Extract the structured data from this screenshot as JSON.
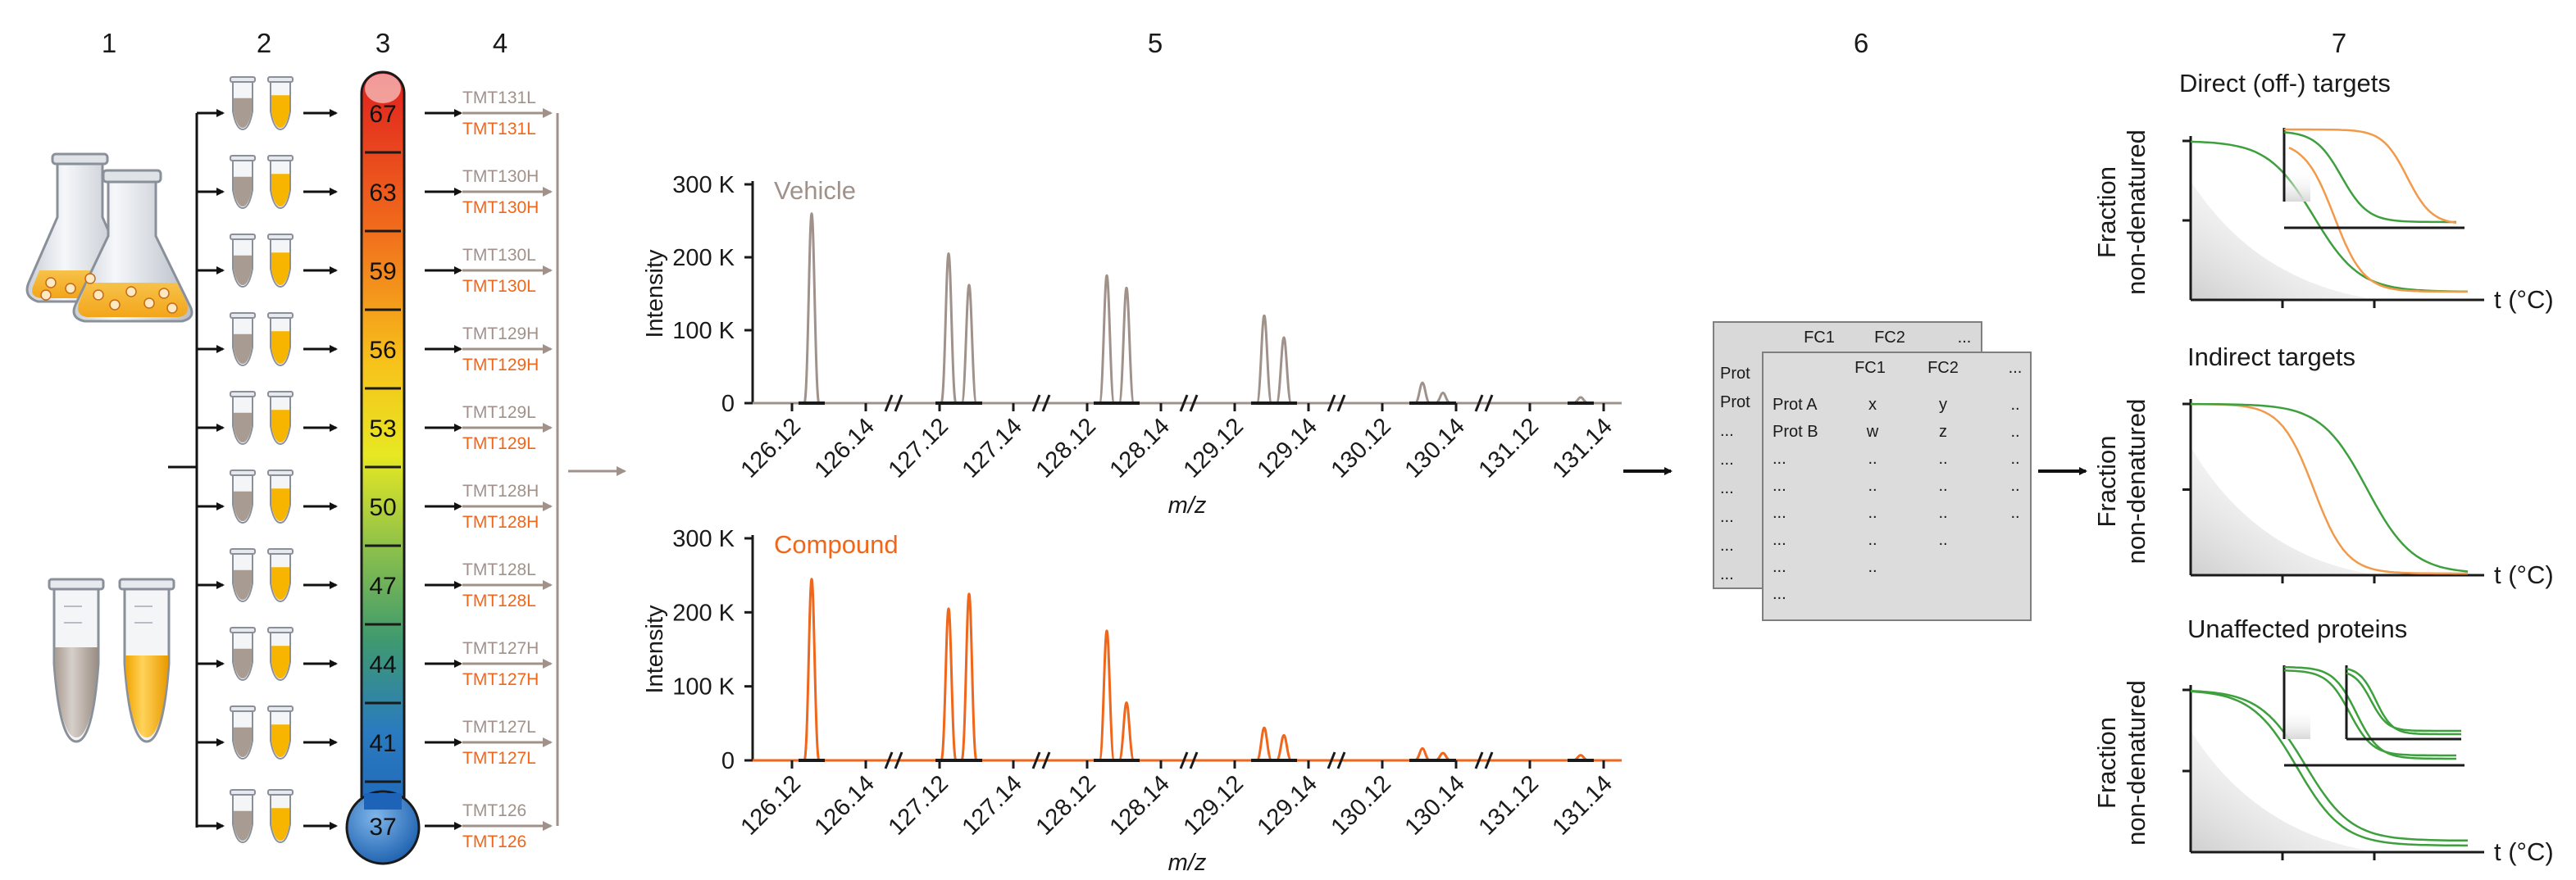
{
  "steps": [
    "1",
    "2",
    "3",
    "4",
    "5",
    "6",
    "7"
  ],
  "temperatures": [
    "67",
    "63",
    "59",
    "56",
    "53",
    "50",
    "47",
    "44",
    "41",
    "37"
  ],
  "tmt_labels": [
    "TMT131L",
    "TMT130H",
    "TMT130L",
    "TMT129H",
    "TMT129L",
    "TMT128H",
    "TMT128L",
    "TMT127H",
    "TMT127L",
    "TMT126"
  ],
  "colors": {
    "vehicle": "#a0928a",
    "compound": "#f0661a",
    "green": "#3da03d",
    "orange_curve": "#f29a4a",
    "tube_fill": "#f7b500",
    "arrow": "#111111",
    "axis": "#1a1a1a"
  },
  "spectra": [
    {
      "name": "Vehicle",
      "ylabel": "Intensity",
      "xlabel": "m/z",
      "yticks": [
        "300 K",
        "200 K",
        "100 K",
        "0"
      ],
      "xticks": [
        "126.12",
        "126.14",
        "127.12",
        "127.14",
        "128.12",
        "128.14",
        "129.12",
        "129.14",
        "130.12",
        "130.14",
        "131.12",
        "131.14"
      ],
      "peaks": [
        {
          "x": "126.13",
          "y": 260000
        },
        {
          "x": "127.125",
          "y": 205000
        },
        {
          "x": "127.13",
          "y": 162000
        },
        {
          "x": "128.125",
          "y": 175000
        },
        {
          "x": "128.13",
          "y": 158000
        },
        {
          "x": "129.125",
          "y": 120000
        },
        {
          "x": "129.13",
          "y": 90000
        },
        {
          "x": "130.135",
          "y": 28000
        },
        {
          "x": "130.14",
          "y": 14000
        },
        {
          "x": "131.14",
          "y": 8000
        }
      ]
    },
    {
      "name": "Compound",
      "ylabel": "Intensity",
      "xlabel": "m/z",
      "yticks": [
        "300 K",
        "200 K",
        "100 K",
        "0"
      ],
      "xticks": [
        "126.12",
        "126.14",
        "127.12",
        "127.14",
        "128.12",
        "128.14",
        "129.12",
        "129.14",
        "130.12",
        "130.14",
        "131.12",
        "131.14"
      ],
      "peaks": [
        {
          "x": "126.13",
          "y": 245000
        },
        {
          "x": "127.125",
          "y": 205000
        },
        {
          "x": "127.13",
          "y": 225000
        },
        {
          "x": "128.125",
          "y": 175000
        },
        {
          "x": "128.13",
          "y": 78000
        },
        {
          "x": "129.125",
          "y": 44000
        },
        {
          "x": "129.13",
          "y": 34000
        },
        {
          "x": "130.135",
          "y": 16000
        },
        {
          "x": "130.14",
          "y": 10000
        },
        {
          "x": "131.14",
          "y": 7000
        }
      ]
    }
  ],
  "table": {
    "back_header": [
      "FC1",
      "FC2",
      "..."
    ],
    "front_header": [
      "FC1",
      "FC2",
      "..."
    ],
    "back_rows": [
      "Prot",
      "Prot",
      "...",
      "...",
      "...",
      "...",
      "...",
      "..."
    ],
    "front_rows": [
      [
        "Prot A",
        "x",
        "y",
        ".."
      ],
      [
        "Prot B",
        "w",
        "z",
        ".."
      ],
      [
        "...",
        "..",
        "..",
        ".."
      ],
      [
        "...",
        "..",
        "..",
        ".."
      ],
      [
        "...",
        "..",
        "..",
        ".."
      ],
      [
        "...",
        "..",
        "..",
        ""
      ],
      [
        "...",
        "..",
        "",
        ""
      ],
      [
        "...",
        "",
        "",
        ""
      ]
    ]
  },
  "melting_panels": [
    {
      "title": "Direct (off-) targets",
      "ylabel": [
        "Fraction",
        "non-denatured"
      ],
      "xlabel": "t (°C)"
    },
    {
      "title": "Indirect targets",
      "ylabel": [
        "Fraction",
        "non-denatured"
      ],
      "xlabel": "t (°C)"
    },
    {
      "title": "Unaffected proteins",
      "ylabel": [
        "Fraction",
        "non-denatured"
      ],
      "xlabel": "t (°C)"
    }
  ]
}
